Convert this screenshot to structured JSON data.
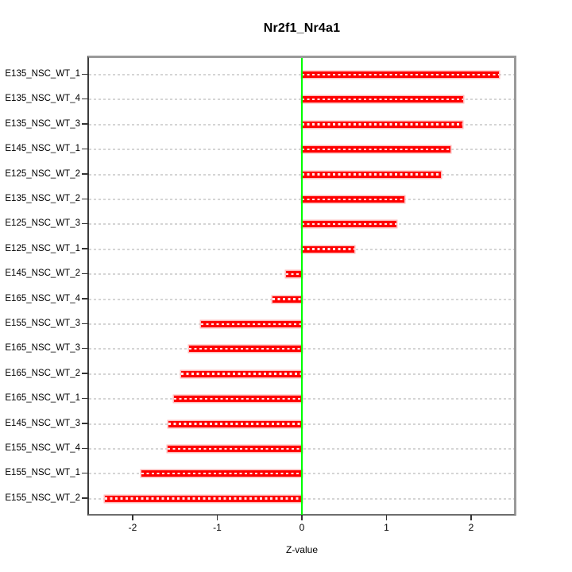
{
  "figure": {
    "title": "Nr2f1_Nr4a1",
    "xlabel": "Z-value"
  },
  "chart_data": {
    "type": "bar",
    "orientation": "horizontal",
    "title": "Nr2f1_Nr4a1",
    "xlabel": "Z-value",
    "ylabel": "",
    "xlim": [
      -2.52,
      2.52
    ],
    "xticks": [
      -2,
      -1,
      0,
      1,
      2
    ],
    "xtick_labels": [
      "-2",
      "-1",
      "0",
      "1",
      "2"
    ],
    "grid": "horizontal-dashed",
    "legend": "none",
    "bar_color": "#ff0000",
    "bar_edge_color": "#ffb9b9",
    "zero_line_color": "#00ff00",
    "grid_color": "#d5d5d5",
    "categories": [
      "E135_NSC_WT_1",
      "E135_NSC_WT_4",
      "E135_NSC_WT_3",
      "E145_NSC_WT_1",
      "E125_NSC_WT_2",
      "E135_NSC_WT_2",
      "E125_NSC_WT_3",
      "E125_NSC_WT_1",
      "E145_NSC_WT_2",
      "E165_NSC_WT_4",
      "E155_NSC_WT_3",
      "E165_NSC_WT_3",
      "E165_NSC_WT_2",
      "E165_NSC_WT_1",
      "E145_NSC_WT_3",
      "E155_NSC_WT_4",
      "E155_NSC_WT_1",
      "E155_NSC_WT_2"
    ],
    "values": [
      2.33,
      1.91,
      1.9,
      1.76,
      1.64,
      1.21,
      1.12,
      0.62,
      -0.19,
      -0.35,
      -1.19,
      -1.33,
      -1.43,
      -1.51,
      -1.58,
      -1.59,
      -1.9,
      -2.33
    ]
  }
}
